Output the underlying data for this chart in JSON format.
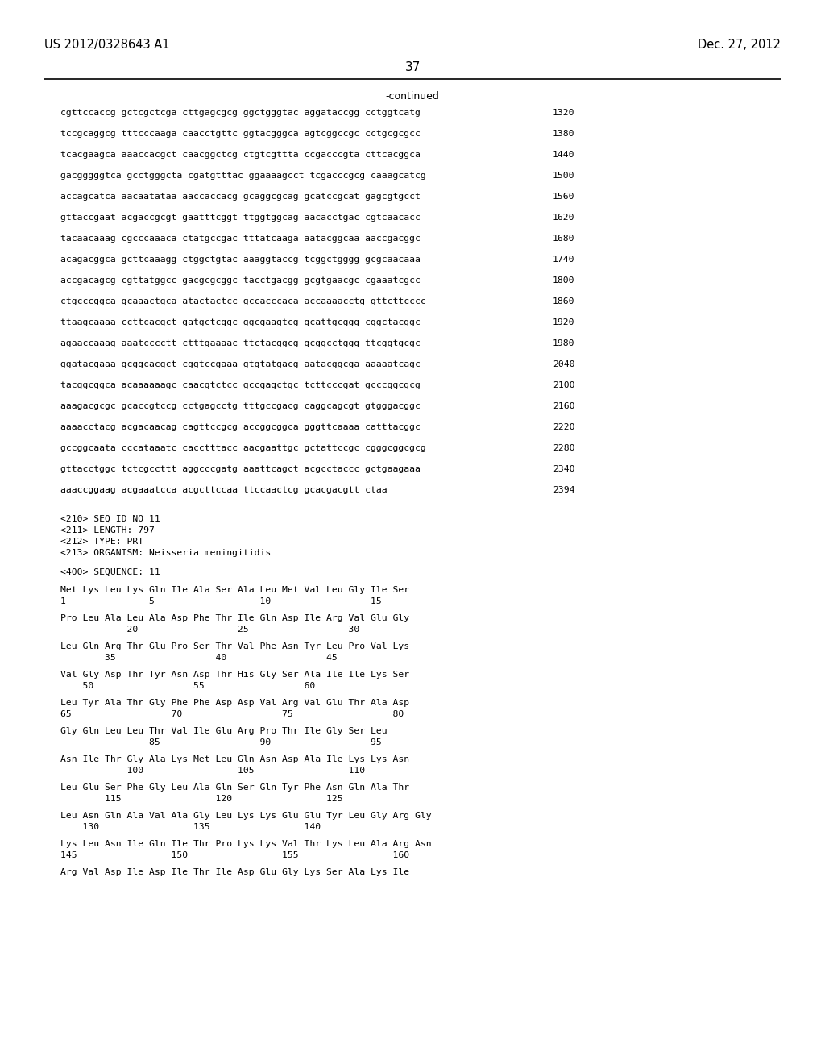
{
  "header_left": "US 2012/0328643 A1",
  "header_right": "Dec. 27, 2012",
  "page_number": "37",
  "continued_label": "-continued",
  "background_color": "#ffffff",
  "text_color": "#000000",
  "dna_lines": [
    [
      "cgttccaccg gctcgctcga cttgagcgcg ggctgggtac aggataccgg cctggtcatg",
      "1320"
    ],
    [
      "tccgcaggcg tttcccaaga caacctgttc ggtacgggca agtcggccgc cctgcgcgcc",
      "1380"
    ],
    [
      "tcacgaagca aaaccacgct caacggctcg ctgtcgttta ccgacccgta cttcacggca",
      "1440"
    ],
    [
      "gacgggggtca gcctgggcta cgatgtttac ggaaaagcct tcgacccgcg caaagcatcg",
      "1500"
    ],
    [
      "accagcatca aacaatataa aaccaccacg gcaggcgcag gcatccgcat gagcgtgcct",
      "1560"
    ],
    [
      "gttaccgaat acgaccgcgt gaatttcggt ttggtggcag aacacctgac cgtcaacacc",
      "1620"
    ],
    [
      "tacaacaaag cgcccaaaca ctatgccgac tttatcaaga aatacggcaa aaccgacggc",
      "1680"
    ],
    [
      "acagacggca gcttcaaagg ctggctgtac aaaggtaccg tcggctgggg gcgcaacaaa",
      "1740"
    ],
    [
      "accgacagcg cgttatggcc gacgcgcggc tacctgacgg gcgtgaacgc cgaaatcgcc",
      "1800"
    ],
    [
      "ctgcccggca gcaaactgca atactactcc gccacccaca accaaaacctg gttcttcccc",
      "1860"
    ],
    [
      "ttaagcaaaa ccttcacgct gatgctcggc ggcgaagtcg gcattgcggg cggctacggc",
      "1920"
    ],
    [
      "agaaccaaag aaatcccctt ctttgaaaac ttctacggcg gcggcctggg ttcggtgcgc",
      "1980"
    ],
    [
      "ggatacgaaa gcggcacgct cggtccgaaa gtgtatgacg aatacggcga aaaaatcagc",
      "2040"
    ],
    [
      "tacggcggca acaaaaaagc caacgtctcc gccgagctgc tcttcccgat gcccggcgcg",
      "2100"
    ],
    [
      "aaagacgcgc gcaccgtccg cctgagcctg tttgccgacg caggcagcgt gtgggacggc",
      "2160"
    ],
    [
      "aaaacctacg acgacaacag cagttccgcg accggcggca gggttcaaaa catttacggc",
      "2220"
    ],
    [
      "gccggcaata cccataaatc cacctttacc aacgaattgc gctattccgc cgggcggcgcg",
      "2280"
    ],
    [
      "gttacctggc tctcgccttt aggcccgatg aaattcagct acgcctaccc gctgaagaaa",
      "2340"
    ],
    [
      "aaaccggaag acgaaatcca acgcttccaa ttccaactcg gcacgacgtt ctaa",
      "2394"
    ]
  ],
  "metadata_lines": [
    "<210> SEQ ID NO 11",
    "<211> LENGTH: 797",
    "<212> TYPE: PRT",
    "<213> ORGANISM: Neisseria meningitidis"
  ],
  "sequence_header": "<400> SEQUENCE: 11",
  "protein_groups": [
    {
      "seq": "Met Lys Leu Lys Gln Ile Ala Ser Ala Leu Met Val Leu Gly Ile Ser",
      "num": "1               5                   10                  15"
    },
    {
      "seq": "Pro Leu Ala Leu Ala Asp Phe Thr Ile Gln Asp Ile Arg Val Glu Gly",
      "num": "            20                  25                  30"
    },
    {
      "seq": "Leu Gln Arg Thr Glu Pro Ser Thr Val Phe Asn Tyr Leu Pro Val Lys",
      "num": "        35                  40                  45"
    },
    {
      "seq": "Val Gly Asp Thr Tyr Asn Asp Thr His Gly Ser Ala Ile Ile Lys Ser",
      "num": "    50                  55                  60"
    },
    {
      "seq": "Leu Tyr Ala Thr Gly Phe Phe Asp Asp Val Arg Val Glu Thr Ala Asp",
      "num": "65                  70                  75                  80"
    },
    {
      "seq": "Gly Gln Leu Leu Thr Val Ile Glu Arg Pro Thr Ile Gly Ser Leu",
      "num": "                85                  90                  95"
    },
    {
      "seq": "Asn Ile Thr Gly Ala Lys Met Leu Gln Asn Asp Ala Ile Lys Lys Asn",
      "num": "            100                 105                 110"
    },
    {
      "seq": "Leu Glu Ser Phe Gly Leu Ala Gln Ser Gln Tyr Phe Asn Gln Ala Thr",
      "num": "        115                 120                 125"
    },
    {
      "seq": "Leu Asn Gln Ala Val Ala Gly Leu Lys Lys Glu Glu Tyr Leu Gly Arg Gly",
      "num": "    130                 135                 140"
    },
    {
      "seq": "Lys Leu Asn Ile Gln Ile Thr Pro Lys Lys Val Thr Lys Leu Ala Arg Asn",
      "num": "145                 150                 155                 160"
    },
    {
      "seq": "Arg Val Asp Ile Asp Ile Thr Ile Asp Glu Gly Lys Ser Ala Lys Ile",
      "num": ""
    }
  ]
}
